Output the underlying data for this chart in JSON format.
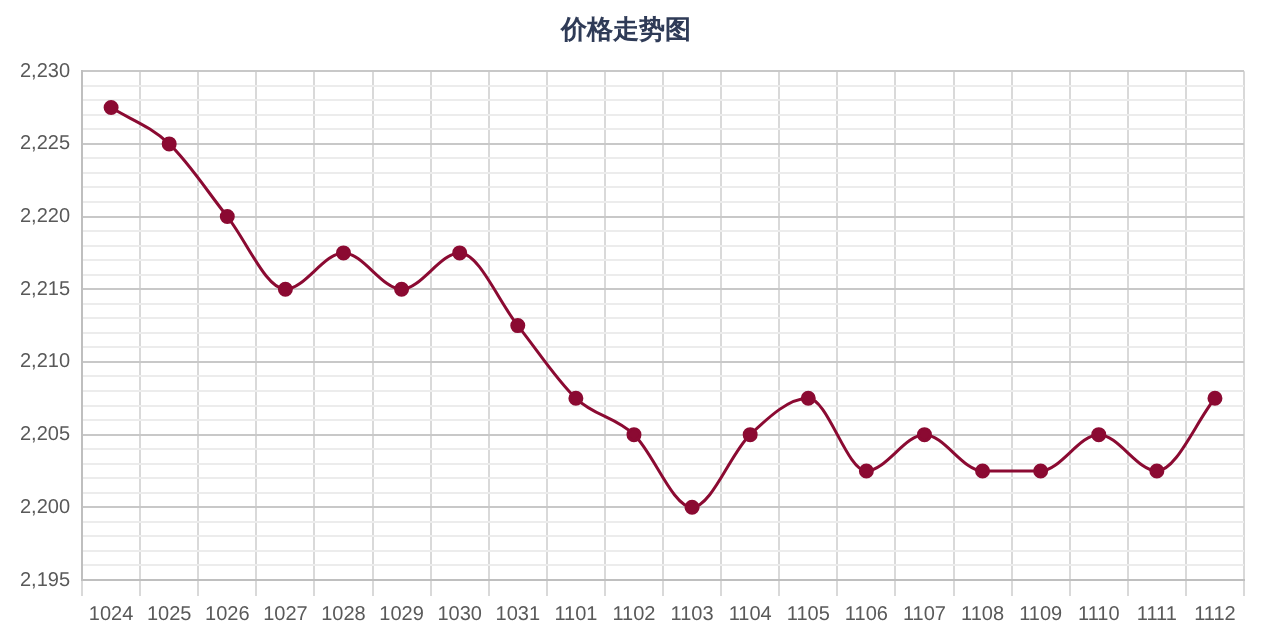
{
  "chart_data": {
    "type": "line",
    "title": "价格走势图",
    "categories": [
      "1024",
      "1025",
      "1026",
      "1027",
      "1028",
      "1029",
      "1030",
      "1031",
      "1101",
      "1102",
      "1103",
      "1104",
      "1105",
      "1106",
      "1107",
      "1108",
      "1109",
      "1110",
      "1111",
      "1112"
    ],
    "series": [
      {
        "color": "#8b0a32",
        "values": [
          2227.5,
          2225,
          2220,
          2215,
          2217.5,
          2215,
          2217.5,
          2212.5,
          2207.5,
          2205,
          2200,
          2205,
          2207.5,
          2202.5,
          2205,
          2202.5,
          2202.5,
          2205,
          2202.5,
          2207.5
        ]
      }
    ],
    "ylim": [
      2195,
      2230
    ],
    "yticks": [
      {
        "value": 2195,
        "label": "2,195"
      },
      {
        "value": 2196,
        "label": null
      },
      {
        "value": 2197,
        "label": null
      },
      {
        "value": 2198,
        "label": null
      },
      {
        "value": 2199,
        "label": null
      },
      {
        "value": 2200,
        "label": "2,200"
      },
      {
        "value": 2201,
        "label": null
      },
      {
        "value": 2202,
        "label": null
      },
      {
        "value": 2203,
        "label": null
      },
      {
        "value": 2204,
        "label": null
      },
      {
        "value": 2205,
        "label": "2,205"
      },
      {
        "value": 2206,
        "label": null
      },
      {
        "value": 2207,
        "label": null
      },
      {
        "value": 2208,
        "label": null
      },
      {
        "value": 2209,
        "label": null
      },
      {
        "value": 2210,
        "label": "2,210"
      },
      {
        "value": 2211,
        "label": null
      },
      {
        "value": 2212,
        "label": null
      },
      {
        "value": 2213,
        "label": null
      },
      {
        "value": 2214,
        "label": null
      },
      {
        "value": 2215,
        "label": "2,215"
      },
      {
        "value": 2216,
        "label": null
      },
      {
        "value": 2217,
        "label": null
      },
      {
        "value": 2218,
        "label": null
      },
      {
        "value": 2219,
        "label": null
      },
      {
        "value": 2220,
        "label": "2,220"
      },
      {
        "value": 2221,
        "label": null
      },
      {
        "value": 2222,
        "label": null
      },
      {
        "value": 2223,
        "label": null
      },
      {
        "value": 2224,
        "label": null
      },
      {
        "value": 2225,
        "label": "2,225"
      },
      {
        "value": 2226,
        "label": null
      },
      {
        "value": 2227,
        "label": null
      },
      {
        "value": 2228,
        "label": null
      },
      {
        "value": 2229,
        "label": null
      },
      {
        "value": 2230,
        "label": "2,230"
      }
    ],
    "grid": true,
    "legend": false,
    "marker": "circle",
    "line_style": "solid"
  }
}
